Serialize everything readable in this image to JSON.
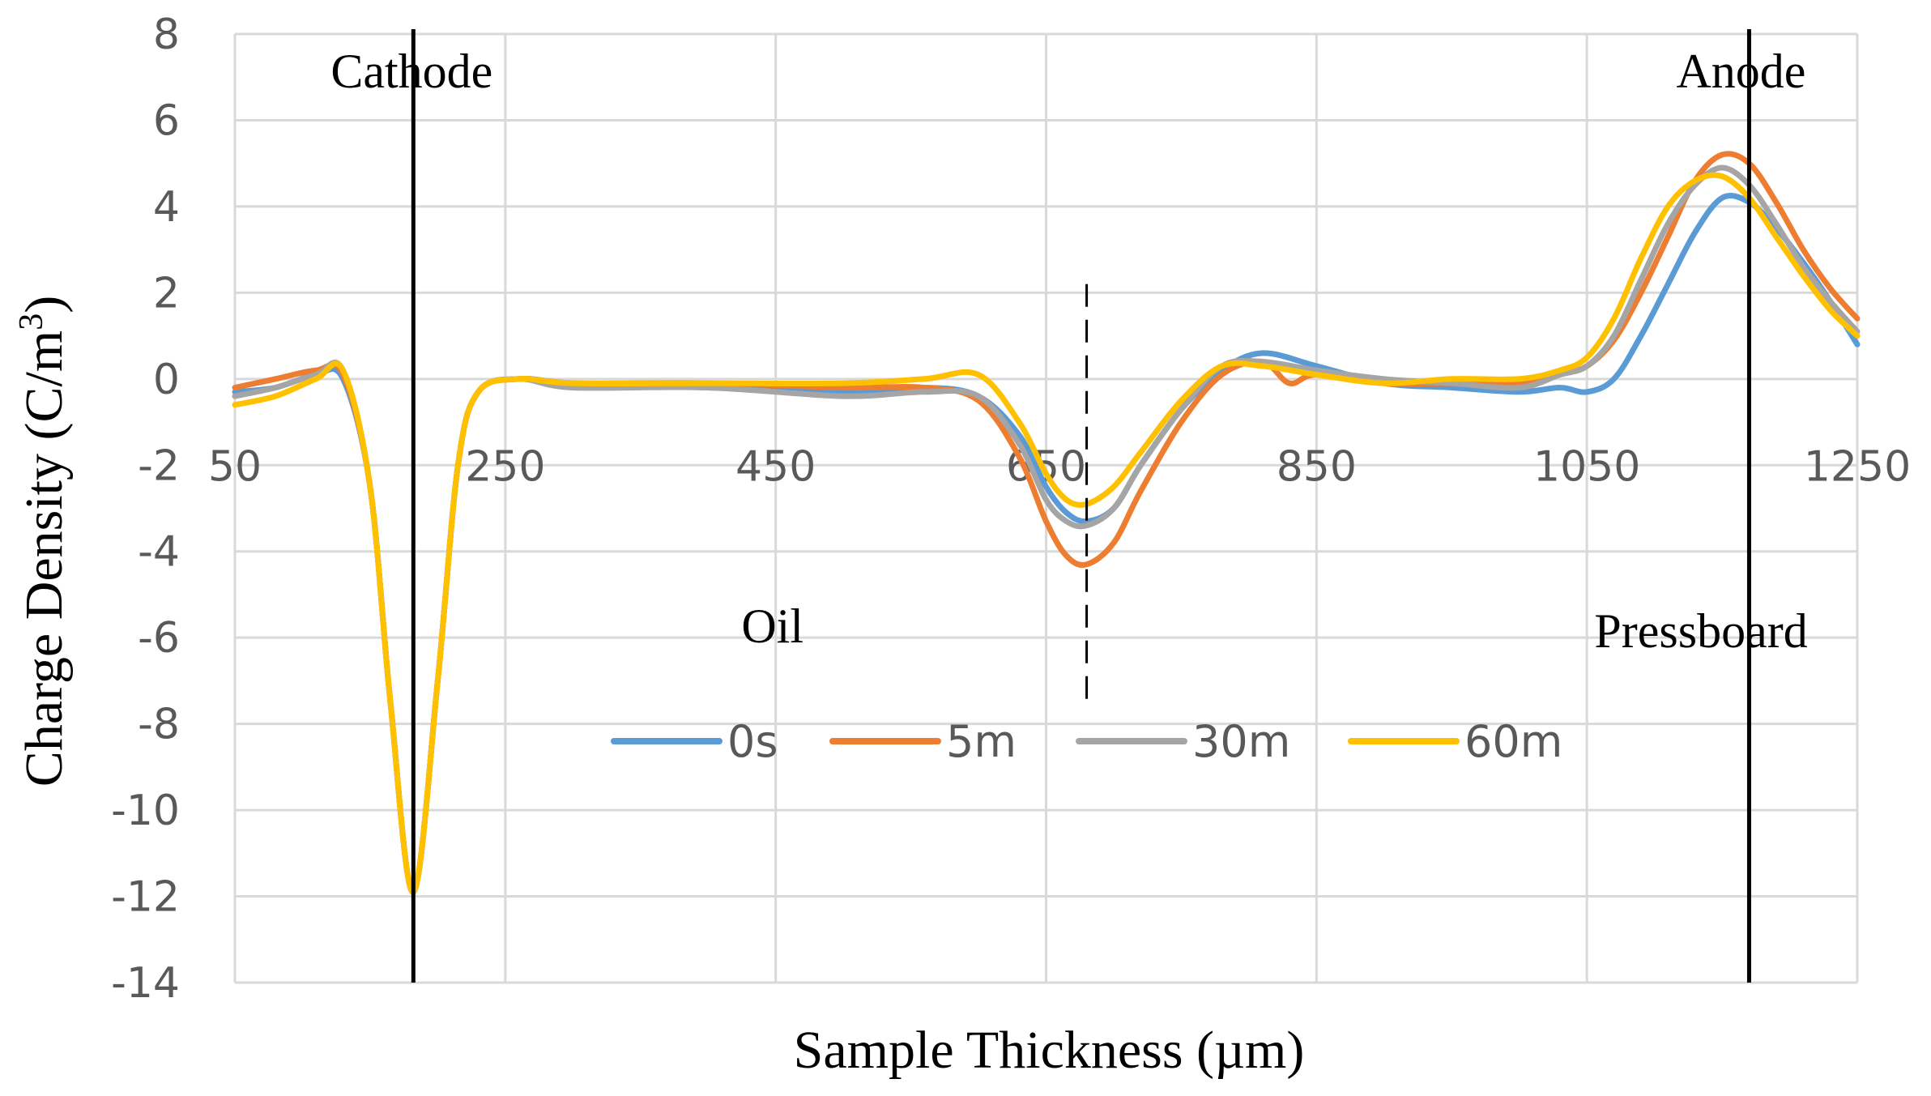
{
  "chart_data": {
    "type": "line",
    "title": "",
    "xlabel": "Sample Thickness (µm)",
    "ylabel": "Charge Density (C/m",
    "ylabel_superscript": "3",
    "ylabel_close": ")",
    "xlim": [
      50,
      1250
    ],
    "ylim": [
      -14,
      8
    ],
    "xticks": [
      50,
      250,
      450,
      650,
      850,
      1050,
      1250
    ],
    "yticks": [
      8,
      6,
      4,
      2,
      0,
      -2,
      -4,
      -6,
      -8,
      -10,
      -12,
      -14
    ],
    "grid": true,
    "legend_position": "center-bottom",
    "annotations": {
      "cathode": {
        "label": "Cathode",
        "x": 182
      },
      "anode": {
        "label": "Anode",
        "x": 1170
      },
      "interface": {
        "x": 680,
        "y_range": [
          -7.7,
          2.2
        ]
      },
      "oil": {
        "label": "Oil",
        "x": 450,
        "y": -6
      },
      "pressboard": {
        "label": "Pressboard",
        "x": 1150,
        "y": -6
      }
    },
    "series": [
      {
        "name": "0s",
        "color": "#5b9bd5",
        "x": [
          50,
          80,
          110,
          130,
          150,
          165,
          182,
          200,
          215,
          230,
          260,
          300,
          400,
          500,
          560,
          600,
          630,
          650,
          665,
          680,
          700,
          720,
          750,
          780,
          810,
          850,
          900,
          950,
          1000,
          1030,
          1050,
          1070,
          1090,
          1110,
          1130,
          1150,
          1170,
          1190,
          1210,
          1230,
          1250
        ],
        "y": [
          -0.3,
          -0.2,
          0.1,
          0.0,
          -2.5,
          -7.5,
          -11.9,
          -7.0,
          -2.0,
          -0.3,
          0.0,
          -0.1,
          -0.2,
          -0.3,
          -0.2,
          -0.4,
          -1.3,
          -2.5,
          -3.1,
          -3.3,
          -3.0,
          -2.0,
          -0.7,
          0.2,
          0.6,
          0.3,
          -0.1,
          -0.2,
          -0.3,
          -0.2,
          -0.3,
          0.0,
          1.0,
          2.2,
          3.4,
          4.2,
          4.1,
          3.5,
          2.7,
          1.8,
          0.8
        ]
      },
      {
        "name": "5m",
        "color": "#ed7d31",
        "x": [
          50,
          80,
          110,
          130,
          150,
          165,
          182,
          200,
          215,
          230,
          260,
          300,
          400,
          500,
          560,
          600,
          630,
          650,
          665,
          680,
          700,
          720,
          750,
          780,
          810,
          830,
          850,
          900,
          950,
          1000,
          1030,
          1050,
          1070,
          1090,
          1110,
          1130,
          1150,
          1170,
          1190,
          1210,
          1230,
          1250
        ],
        "y": [
          -0.2,
          0.0,
          0.2,
          0.1,
          -2.5,
          -7.5,
          -11.9,
          -7.0,
          -2.0,
          -0.3,
          0.0,
          -0.1,
          -0.1,
          -0.2,
          -0.2,
          -0.5,
          -1.8,
          -3.3,
          -4.1,
          -4.3,
          -3.8,
          -2.6,
          -1.0,
          0.1,
          0.4,
          -0.1,
          0.1,
          -0.1,
          -0.1,
          -0.1,
          0.1,
          0.3,
          0.9,
          2.0,
          3.3,
          4.6,
          5.2,
          5.0,
          4.1,
          3.0,
          2.1,
          1.4
        ]
      },
      {
        "name": "30m",
        "color": "#a5a5a5",
        "x": [
          50,
          80,
          110,
          130,
          150,
          165,
          182,
          200,
          215,
          230,
          260,
          300,
          400,
          500,
          560,
          600,
          630,
          650,
          665,
          680,
          700,
          720,
          750,
          780,
          810,
          850,
          900,
          950,
          1000,
          1030,
          1050,
          1070,
          1090,
          1110,
          1130,
          1150,
          1170,
          1190,
          1210,
          1230,
          1250
        ],
        "y": [
          -0.4,
          -0.2,
          0.1,
          0.2,
          -2.5,
          -7.5,
          -11.9,
          -7.0,
          -2.0,
          -0.3,
          0.0,
          -0.2,
          -0.2,
          -0.4,
          -0.3,
          -0.4,
          -1.5,
          -2.8,
          -3.3,
          -3.4,
          -3.0,
          -2.0,
          -0.7,
          0.3,
          0.4,
          0.2,
          0.0,
          -0.1,
          -0.2,
          0.1,
          0.3,
          1.0,
          2.3,
          3.6,
          4.5,
          4.9,
          4.5,
          3.6,
          2.6,
          1.8,
          1.1
        ]
      },
      {
        "name": "60m",
        "color": "#ffc000",
        "x": [
          50,
          80,
          110,
          130,
          150,
          165,
          182,
          200,
          215,
          230,
          260,
          300,
          400,
          500,
          560,
          600,
          630,
          650,
          665,
          680,
          700,
          720,
          750,
          780,
          810,
          850,
          900,
          950,
          1000,
          1030,
          1050,
          1070,
          1090,
          1110,
          1130,
          1150,
          1170,
          1190,
          1210,
          1230,
          1250
        ],
        "y": [
          -0.6,
          -0.4,
          0.0,
          0.2,
          -2.5,
          -7.5,
          -11.9,
          -7.0,
          -2.0,
          -0.3,
          0.0,
          -0.1,
          -0.1,
          -0.1,
          0.0,
          0.1,
          -1.0,
          -2.2,
          -2.8,
          -2.9,
          -2.5,
          -1.7,
          -0.5,
          0.3,
          0.3,
          0.1,
          -0.1,
          0.0,
          0.0,
          0.2,
          0.5,
          1.4,
          2.8,
          4.0,
          4.6,
          4.7,
          4.2,
          3.3,
          2.4,
          1.6,
          1.0
        ]
      }
    ]
  }
}
